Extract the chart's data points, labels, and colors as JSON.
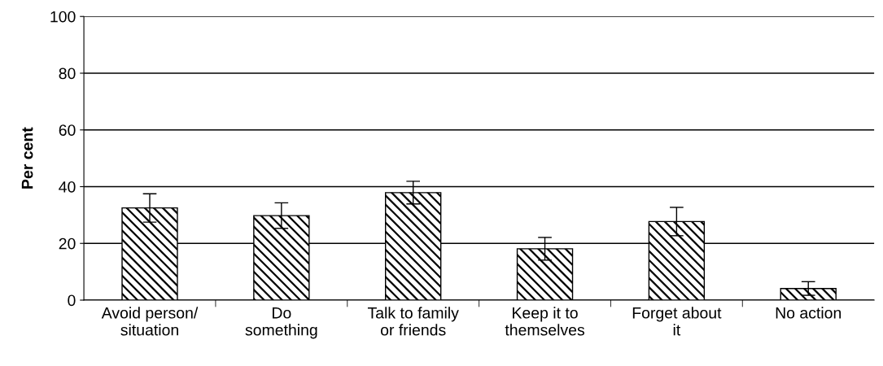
{
  "chart_data": {
    "type": "bar",
    "ylabel": "Per cent",
    "categories": [
      "Avoid person/\nsituation",
      "Do\nsomething",
      "Talk to family\nor friends",
      "Keep it to\nthemselves",
      "Forget about\nit",
      "No action"
    ],
    "values": [
      32.5,
      29.8,
      37.9,
      18.1,
      27.7,
      4.1
    ],
    "errors": [
      5,
      4.5,
      4,
      4,
      5,
      2.4
    ],
    "color": "#000000",
    "ylim": [
      0,
      100
    ],
    "yticks": [
      0,
      20,
      40,
      60,
      80,
      100
    ],
    "grid": "y",
    "legend": false
  }
}
